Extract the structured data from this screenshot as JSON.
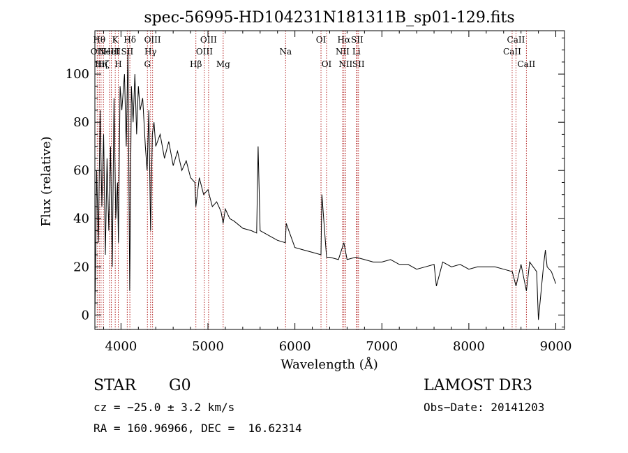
{
  "chart_data": {
    "type": "line",
    "title": "spec-56995-HD104231N181311B_sp01-129.fits",
    "xlabel": "Wavelength (Å)",
    "ylabel": "Flux (relative)",
    "xlim": [
      3700,
      9100
    ],
    "ylim": [
      -6,
      118
    ],
    "xticks": [
      4000,
      5000,
      6000,
      7000,
      8000,
      9000
    ],
    "yticks": [
      0,
      20,
      40,
      60,
      80,
      100
    ],
    "series": [
      {
        "name": "spectrum",
        "x": [
          3700,
          3720,
          3740,
          3760,
          3780,
          3800,
          3820,
          3840,
          3860,
          3880,
          3900,
          3920,
          3940,
          3960,
          3970,
          3990,
          4010,
          4040,
          4060,
          4080,
          4100,
          4120,
          4140,
          4160,
          4180,
          4200,
          4220,
          4250,
          4280,
          4300,
          4320,
          4340,
          4360,
          4380,
          4400,
          4450,
          4500,
          4550,
          4600,
          4650,
          4700,
          4750,
          4800,
          4850,
          4861,
          4900,
          4950,
          5000,
          5050,
          5100,
          5150,
          5175,
          5200,
          5250,
          5300,
          5400,
          5500,
          5560,
          5577,
          5600,
          5700,
          5800,
          5890,
          5900,
          6000,
          6100,
          6200,
          6300,
          6310,
          6364,
          6400,
          6500,
          6563,
          6600,
          6700,
          6800,
          6900,
          7000,
          7100,
          7200,
          7300,
          7400,
          7500,
          7600,
          7627,
          7700,
          7800,
          7900,
          8000,
          8100,
          8200,
          8300,
          8400,
          8500,
          8542,
          8600,
          8662,
          8700,
          8780,
          8800,
          8860,
          8880,
          8900,
          8950,
          9000
        ],
        "values": [
          0,
          60,
          30,
          85,
          45,
          75,
          25,
          65,
          35,
          70,
          20,
          90,
          40,
          55,
          30,
          95,
          85,
          100,
          70,
          110,
          10,
          95,
          80,
          100,
          75,
          95,
          85,
          90,
          70,
          60,
          85,
          35,
          75,
          80,
          70,
          75,
          65,
          72,
          62,
          68,
          60,
          64,
          57,
          55,
          45,
          57,
          50,
          52,
          45,
          47,
          43,
          38,
          44,
          40,
          39,
          36,
          35,
          34,
          70,
          35,
          33,
          31,
          30,
          38,
          28,
          27,
          26,
          25,
          50,
          24,
          24,
          23,
          30,
          23,
          24,
          23,
          22,
          22,
          23,
          21,
          21,
          19,
          20,
          21,
          12,
          22,
          20,
          21,
          19,
          20,
          20,
          20,
          19,
          18,
          12,
          21,
          10,
          22,
          18,
          -2,
          21,
          27,
          20,
          18,
          13
        ]
      }
    ],
    "lines": [
      {
        "wl": 3727,
        "label": "OII",
        "row": 1
      },
      {
        "wl": 3750,
        "label": "Hθ",
        "row": 0
      },
      {
        "wl": 3771,
        "label": "Hη",
        "row": 2
      },
      {
        "wl": 3798,
        "label": "Hζ",
        "row": 2
      },
      {
        "wl": 3869,
        "label": "NeIII",
        "row": 1
      },
      {
        "wl": 3889,
        "label": "HeI",
        "row": 1
      },
      {
        "wl": 3934,
        "label": "K",
        "row": 0
      },
      {
        "wl": 3969,
        "label": "H",
        "row": 2
      },
      {
        "wl": 4072,
        "label": "SII",
        "row": 1
      },
      {
        "wl": 4102,
        "label": "Hδ",
        "row": 0
      },
      {
        "wl": 4304,
        "label": "G",
        "row": 2
      },
      {
        "wl": 4340,
        "label": "Hγ",
        "row": 1
      },
      {
        "wl": 4363,
        "label": "OIII",
        "row": 0
      },
      {
        "wl": 4861,
        "label": "Hβ",
        "row": 2
      },
      {
        "wl": 4959,
        "label": "OIII",
        "row": 1
      },
      {
        "wl": 5007,
        "label": "OIII",
        "row": 0
      },
      {
        "wl": 5175,
        "label": "Mg",
        "row": 2
      },
      {
        "wl": 5893,
        "label": "Na",
        "row": 1
      },
      {
        "wl": 6300,
        "label": "OI",
        "row": 0
      },
      {
        "wl": 6364,
        "label": "OI",
        "row": 2
      },
      {
        "wl": 6548,
        "label": "NII",
        "row": 1
      },
      {
        "wl": 6563,
        "label": "Hα",
        "row": 0
      },
      {
        "wl": 6583,
        "label": "NII",
        "row": 2
      },
      {
        "wl": 6707,
        "label": "Li",
        "row": 1
      },
      {
        "wl": 6716,
        "label": "SII",
        "row": 0
      },
      {
        "wl": 6731,
        "label": "SII",
        "row": 2
      },
      {
        "wl": 8498,
        "label": "CaII",
        "row": 1
      },
      {
        "wl": 8542,
        "label": "CaII",
        "row": 0
      },
      {
        "wl": 8662,
        "label": "CaII",
        "row": 2
      }
    ],
    "line_color": "#b22222"
  },
  "info": {
    "class": "STAR",
    "subclass": "G0",
    "survey": "LAMOST DR3",
    "cz": "cz = −25.0 ± 3.2 km/s",
    "obs_date": "Obs−Date: 20141203",
    "radec": "RA = 160.96966, DEC =  16.62314"
  }
}
